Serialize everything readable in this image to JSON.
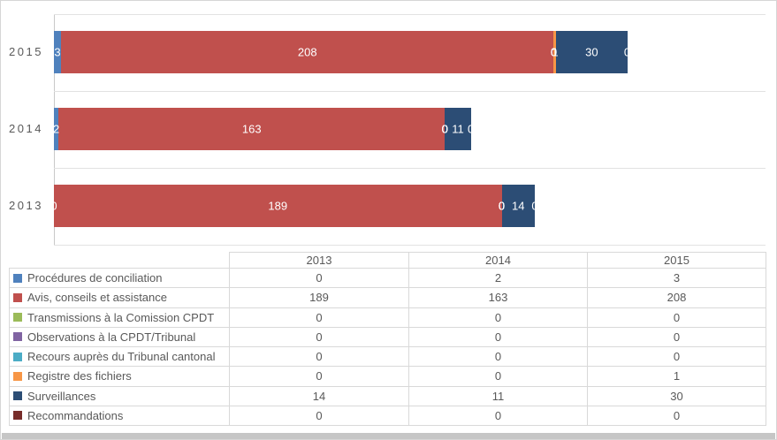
{
  "chart_data": {
    "type": "bar",
    "orientation": "horizontal-stacked",
    "title": "",
    "xlabel": "",
    "ylabel": "",
    "xlim": [
      0,
      300
    ],
    "grid": "category-band-separators",
    "data_labels": true,
    "legend_position": "table-below-with-keys",
    "categories": [
      "2013",
      "2014",
      "2015"
    ],
    "category_order_top_to_bottom": [
      "2015",
      "2014",
      "2013"
    ],
    "series": [
      {
        "name": "Procédures de conciliation",
        "color": "#4F81BD",
        "values": [
          0,
          2,
          3
        ]
      },
      {
        "name": "Avis, conseils et assistance",
        "color": "#C0504D",
        "values": [
          189,
          163,
          208
        ]
      },
      {
        "name": "Transmissions à la Comission CPDT",
        "color": "#9BBB59",
        "values": [
          0,
          0,
          0
        ]
      },
      {
        "name": "Observations à la CPDT/Tribunal",
        "color": "#8064A2",
        "values": [
          0,
          0,
          0
        ]
      },
      {
        "name": "Recours auprès du Tribunal cantonal",
        "color": "#4BACC6",
        "values": [
          0,
          0,
          0
        ]
      },
      {
        "name": "Registre des fichiers",
        "color": "#F79646",
        "values": [
          0,
          0,
          1
        ]
      },
      {
        "name": "Surveillances",
        "color": "#2C4D75",
        "values": [
          14,
          11,
          30
        ]
      },
      {
        "name": "Recommandations",
        "color": "#772C2A",
        "values": [
          0,
          0,
          0
        ]
      }
    ],
    "stacked_totals": {
      "2013": 203,
      "2014": 176,
      "2015": 242
    }
  },
  "table": {
    "corner_label": "",
    "column_headers": [
      "2013",
      "2014",
      "2015"
    ]
  },
  "colors": {
    "bar_label_text": "#FFFFFF",
    "axis_text": "#595959",
    "table_text": "#595959",
    "table_border": "#D9D9D9",
    "chart_gridline": "#E2E2E2",
    "axis_line": "#C9C9C9",
    "bottom_strip": "#C6C6C6",
    "canvas_border": "#D6D6D6"
  }
}
